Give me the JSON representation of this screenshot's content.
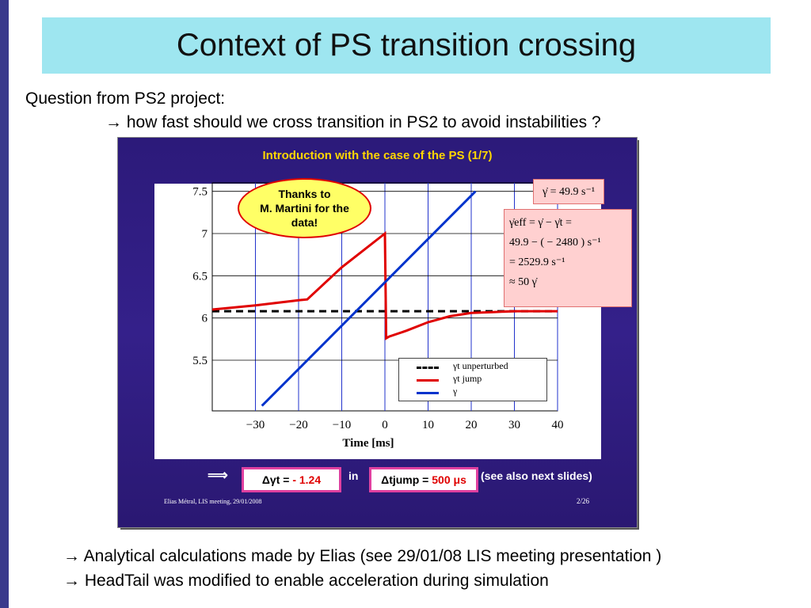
{
  "slide": {
    "title": "Context of PS transition crossing",
    "question": "Question from PS2 project:",
    "question_detail": "→ how fast should we cross transition in PS2 to avoid instabilities ?",
    "bullet1": "→ Analytical calculations made by Elias (see 29/01/08 LIS meeting presentation )",
    "bullet2": "→ HeadTail was modified to enable acceleration during simulation"
  },
  "inner": {
    "title": "Introduction with the case of the PS (1/7)",
    "bubble_line1": "Thanks to",
    "bubble_line2": "M. Martini for the",
    "bubble_line3": "data!",
    "gamma_dot": "γ̇ = 49.9 s⁻¹",
    "eff_line1": "γ̇eff = γ̇ − γ̇t =",
    "eff_line2": "49.9 − ( − 2480 ) s⁻¹",
    "eff_line3": "= 2529.9 s⁻¹",
    "eff_line4": "≈ 50 γ̇",
    "implies": "⟹",
    "delta_gamma_label": "Δγt = ",
    "delta_gamma_value": "- 1.24",
    "in_word": "in",
    "delta_t_label": "Δtjump = ",
    "delta_t_value": "500 μs",
    "see_also": "(see also next slides)",
    "footer_left": "Elias Métral, LIS meeting, 29/01/2008",
    "footer_right": "2/26"
  },
  "colors": {
    "red": "#e00000",
    "blue": "#0033cc",
    "black": "#000000",
    "slide_bg": "#2c1a7a",
    "title_bg": "#9ee6f0"
  },
  "chart_data": {
    "type": "line",
    "xlabel": "Time [ms]",
    "ylabel": "",
    "xlim": [
      -40,
      40
    ],
    "ylim": [
      4.9,
      7.6
    ],
    "x_ticks": [
      "−30",
      "−20",
      "−10",
      "0",
      "10",
      "20",
      "30",
      "40"
    ],
    "y_ticks": [
      "5.5",
      "6",
      "6.5",
      "7",
      "7.5"
    ],
    "grid": true,
    "legend_position": "bottom-right",
    "series": [
      {
        "name": "γt unperturbed",
        "style": "dashed",
        "color": "#000000",
        "x": [
          -40,
          40
        ],
        "y": [
          6.08,
          6.08
        ]
      },
      {
        "name": "γt jump",
        "style": "solid",
        "color": "#e00000",
        "x": [
          -40,
          -30,
          -20,
          -18,
          -10,
          0,
          0.3,
          1,
          5,
          10,
          15,
          20,
          25,
          30,
          40
        ],
        "y": [
          6.1,
          6.15,
          6.21,
          6.22,
          6.6,
          7.0,
          5.76,
          5.78,
          5.85,
          5.95,
          6.02,
          6.06,
          6.07,
          6.08,
          6.08
        ]
      },
      {
        "name": "γ",
        "style": "solid",
        "color": "#0033cc",
        "x": [
          -28.5,
          21
        ],
        "y": [
          4.96,
          7.5
        ]
      }
    ]
  }
}
